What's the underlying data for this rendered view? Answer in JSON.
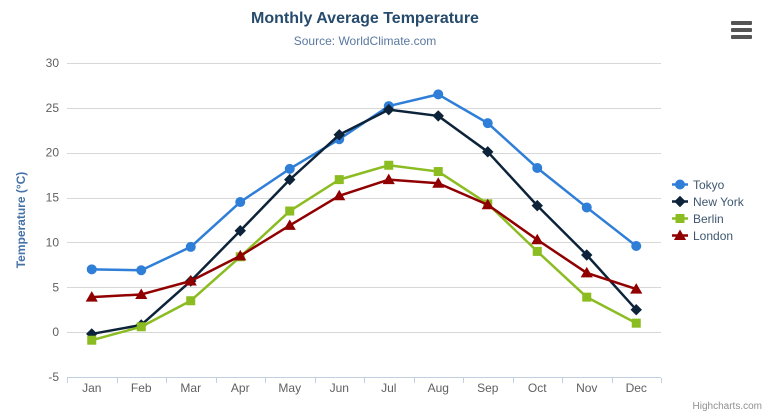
{
  "credits": "Highcharts.com",
  "icons": {
    "context_menu": "hamburger-icon"
  },
  "colors": {
    "title": "#274b6d",
    "subtitle": "#5a78a0",
    "axis_title": "#4572a7",
    "axis_label": "#606060",
    "grid_line": "#d8d8d8",
    "axis_line": "#c0d0e0",
    "legend_text": "#3e576f",
    "credits_text": "#909090",
    "menu_icon": "#555555"
  },
  "chart_data": {
    "type": "line",
    "title": "Monthly Average Temperature",
    "subtitle": "Source: WorldClimate.com",
    "xlabel": "",
    "ylabel": "Temperature (°C)",
    "ylim": [
      -5,
      30
    ],
    "ytick_step": 5,
    "grid": true,
    "legend_position": "right",
    "categories": [
      "Jan",
      "Feb",
      "Mar",
      "Apr",
      "May",
      "Jun",
      "Jul",
      "Aug",
      "Sep",
      "Oct",
      "Nov",
      "Dec"
    ],
    "series": [
      {
        "name": "Tokyo",
        "color": "#2f7ed8",
        "marker": "circle",
        "values": [
          7.0,
          6.9,
          9.5,
          14.5,
          18.2,
          21.5,
          25.2,
          26.5,
          23.3,
          18.3,
          13.9,
          9.6
        ]
      },
      {
        "name": "New York",
        "color": "#0d233a",
        "marker": "diamond",
        "values": [
          -0.2,
          0.8,
          5.7,
          11.3,
          17.0,
          22.0,
          24.8,
          24.1,
          20.1,
          14.1,
          8.6,
          2.5
        ]
      },
      {
        "name": "Berlin",
        "color": "#8bbc21",
        "marker": "square",
        "values": [
          -0.9,
          0.6,
          3.5,
          8.4,
          13.5,
          17.0,
          18.6,
          17.9,
          14.3,
          9.0,
          3.9,
          1.0
        ]
      },
      {
        "name": "London",
        "color": "#910000",
        "marker": "triangle",
        "values": [
          3.9,
          4.2,
          5.7,
          8.5,
          11.9,
          15.2,
          17.0,
          16.6,
          14.2,
          10.3,
          6.6,
          4.8
        ]
      }
    ]
  }
}
